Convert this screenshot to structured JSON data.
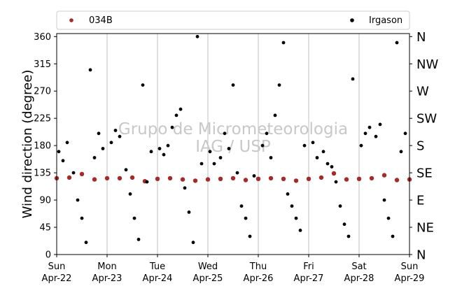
{
  "chart_data": {
    "type": "scatter",
    "title": "",
    "ylabel": "Wind direction (degree)",
    "xlabel": "",
    "ylim": [
      0,
      365
    ],
    "yticks": [
      0,
      45,
      90,
      135,
      180,
      225,
      270,
      315,
      360
    ],
    "xlim": [
      "2018-04-22",
      "2018-04-29"
    ],
    "x_ticks": [
      {
        "day": "Sun",
        "date": "Apr-22"
      },
      {
        "day": "Mon",
        "date": "Apr-23"
      },
      {
        "day": "Tue",
        "date": "Apr-24"
      },
      {
        "day": "Wed",
        "date": "Apr-25"
      },
      {
        "day": "Thu",
        "date": "Apr-26"
      },
      {
        "day": "Fri",
        "date": "Apr-27"
      },
      {
        "day": "Sat",
        "date": "Apr-28"
      },
      {
        "day": "Sun",
        "date": "Apr-29"
      }
    ],
    "direction_labels": [
      "N",
      "NE",
      "E",
      "SE",
      "S",
      "SW",
      "W",
      "NW",
      "N"
    ],
    "grid": "vertical",
    "legend": {
      "placement": "top",
      "entries": [
        "034B",
        "Irgason"
      ]
    },
    "watermark": {
      "line1": "Grupo de Micrometeorologia",
      "line2": "IAG / USP"
    },
    "series": [
      {
        "name": "034B",
        "color": "#a52a2a",
        "description_level": 125,
        "x": [
          "2018-04-22 00:00",
          "2018-04-22 06:00",
          "2018-04-22 12:00",
          "2018-04-22 18:00",
          "2018-04-23 00:00",
          "2018-04-23 06:00",
          "2018-04-23 12:00",
          "2018-04-23 18:00",
          "2018-04-24 00:00",
          "2018-04-24 06:00",
          "2018-04-24 12:00",
          "2018-04-24 18:00",
          "2018-04-25 00:00",
          "2018-04-25 06:00",
          "2018-04-25 12:00",
          "2018-04-25 18:00",
          "2018-04-26 00:00",
          "2018-04-26 06:00",
          "2018-04-26 12:00",
          "2018-04-26 18:00",
          "2018-04-27 00:00",
          "2018-04-27 06:00",
          "2018-04-27 12:00",
          "2018-04-27 18:00",
          "2018-04-28 00:00",
          "2018-04-28 06:00",
          "2018-04-28 12:00",
          "2018-04-28 18:00",
          "2018-04-29 00:00"
        ],
        "y": [
          126,
          127,
          133,
          124,
          126,
          126,
          127,
          121,
          125,
          126,
          124,
          122,
          124,
          125,
          126,
          123,
          125,
          126,
          125,
          122,
          125,
          127,
          134,
          124,
          125,
          126,
          131,
          123,
          124
        ]
      },
      {
        "name": "Irgason",
        "color": "#000000",
        "x": [
          "2018-04-22 01:00",
          "2018-04-22 03:00",
          "2018-04-22 05:00",
          "2018-04-22 08:00",
          "2018-04-22 10:00",
          "2018-04-22 12:00",
          "2018-04-22 14:00",
          "2018-04-22 16:00",
          "2018-04-22 18:00",
          "2018-04-22 20:00",
          "2018-04-22 22:00",
          "2018-04-23 02:00",
          "2018-04-23 04:00",
          "2018-04-23 06:00",
          "2018-04-23 09:00",
          "2018-04-23 11:00",
          "2018-04-23 13:00",
          "2018-04-23 15:00",
          "2018-04-23 17:00",
          "2018-04-23 19:00",
          "2018-04-23 21:00",
          "2018-04-24 01:00",
          "2018-04-24 03:00",
          "2018-04-24 05:00",
          "2018-04-24 07:00",
          "2018-04-24 09:00",
          "2018-04-24 11:00",
          "2018-04-24 13:00",
          "2018-04-24 15:00",
          "2018-04-24 17:00",
          "2018-04-24 19:00",
          "2018-04-24 21:00",
          "2018-04-25 01:00",
          "2018-04-25 03:00",
          "2018-04-25 06:00",
          "2018-04-25 08:00",
          "2018-04-25 10:00",
          "2018-04-25 12:00",
          "2018-04-25 14:00",
          "2018-04-25 16:00",
          "2018-04-25 18:00",
          "2018-04-25 20:00",
          "2018-04-25 22:00",
          "2018-04-26 02:00",
          "2018-04-26 04:00",
          "2018-04-26 06:00",
          "2018-04-26 08:00",
          "2018-04-26 10:00",
          "2018-04-26 12:00",
          "2018-04-26 14:00",
          "2018-04-26 16:00",
          "2018-04-26 18:00",
          "2018-04-26 20:00",
          "2018-04-26 22:00",
          "2018-04-27 02:00",
          "2018-04-27 04:00",
          "2018-04-27 07:00",
          "2018-04-27 09:00",
          "2018-04-27 11:00",
          "2018-04-27 13:00",
          "2018-04-27 15:00",
          "2018-04-27 17:00",
          "2018-04-27 19:00",
          "2018-04-27 21:00",
          "2018-04-28 01:00",
          "2018-04-28 03:00",
          "2018-04-28 05:00",
          "2018-04-28 08:00",
          "2018-04-28 10:00",
          "2018-04-28 12:00",
          "2018-04-28 14:00",
          "2018-04-28 16:00",
          "2018-04-28 18:00",
          "2018-04-28 20:00",
          "2018-04-28 22:00"
        ],
        "y": [
          170,
          155,
          185,
          135,
          90,
          60,
          20,
          305,
          160,
          200,
          175,
          185,
          205,
          195,
          140,
          100,
          60,
          25,
          280,
          120,
          170,
          175,
          165,
          180,
          210,
          230,
          240,
          110,
          70,
          20,
          360,
          150,
          170,
          150,
          160,
          200,
          175,
          280,
          135,
          80,
          60,
          30,
          130,
          180,
          200,
          160,
          230,
          280,
          350,
          100,
          80,
          60,
          40,
          180,
          185,
          160,
          170,
          150,
          145,
          120,
          80,
          50,
          30,
          290,
          180,
          200,
          210,
          195,
          215,
          90,
          60,
          30,
          350,
          170,
          200
        ]
      }
    ]
  }
}
